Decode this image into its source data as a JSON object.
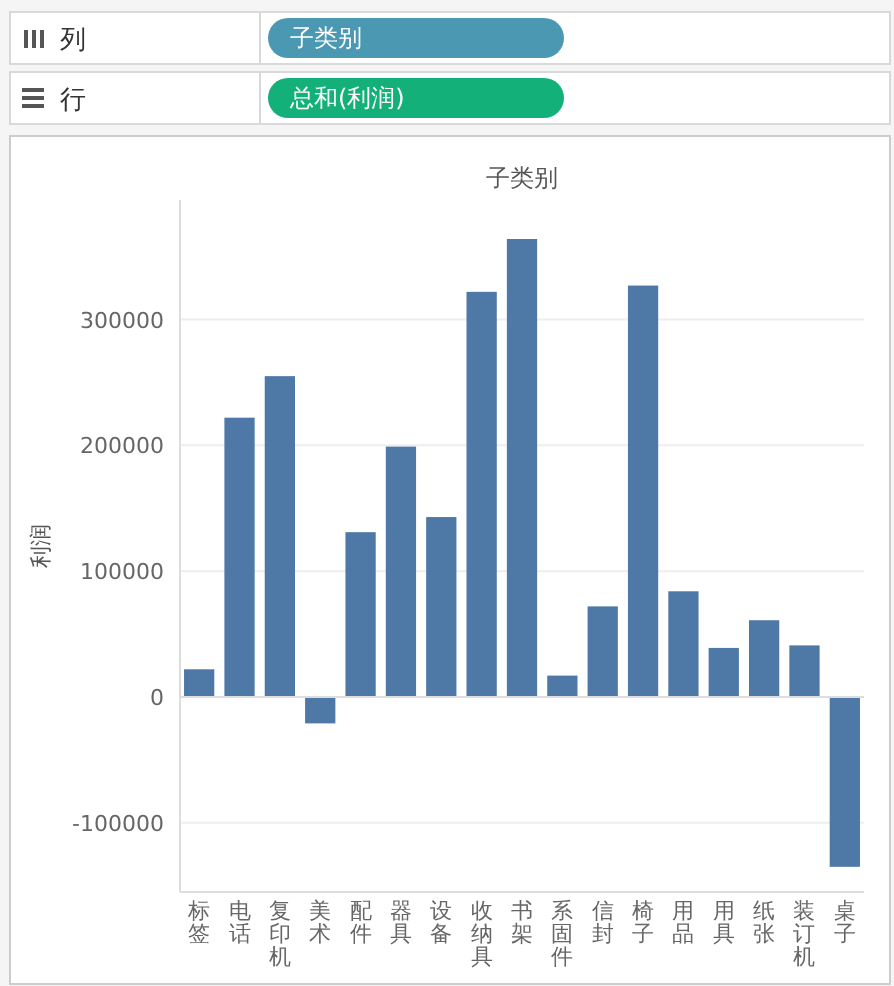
{
  "chart_data": {
    "type": "bar",
    "title": "子类别",
    "ylabel": "利润",
    "annotations": [
      "列",
      "子类别",
      "行",
      "总和(利润)"
    ],
    "categories": [
      "标签",
      "电话",
      "复印机",
      "美术",
      "配件",
      "器具",
      "设备",
      "收纳具",
      "书架",
      "系固件",
      "信封",
      "椅子",
      "用品",
      "用具",
      "纸张",
      "装订机",
      "桌子"
    ],
    "values": [
      22000,
      222000,
      255000,
      -21000,
      131000,
      199000,
      143000,
      322000,
      364000,
      17000,
      72000,
      327000,
      84000,
      39000,
      61000,
      41000,
      -135000
    ],
    "color": "#4e79a7",
    "ylim": [
      -155000,
      395000
    ],
    "yticks": [
      -100000,
      0,
      100000,
      200000,
      300000
    ],
    "grid": "y"
  }
}
